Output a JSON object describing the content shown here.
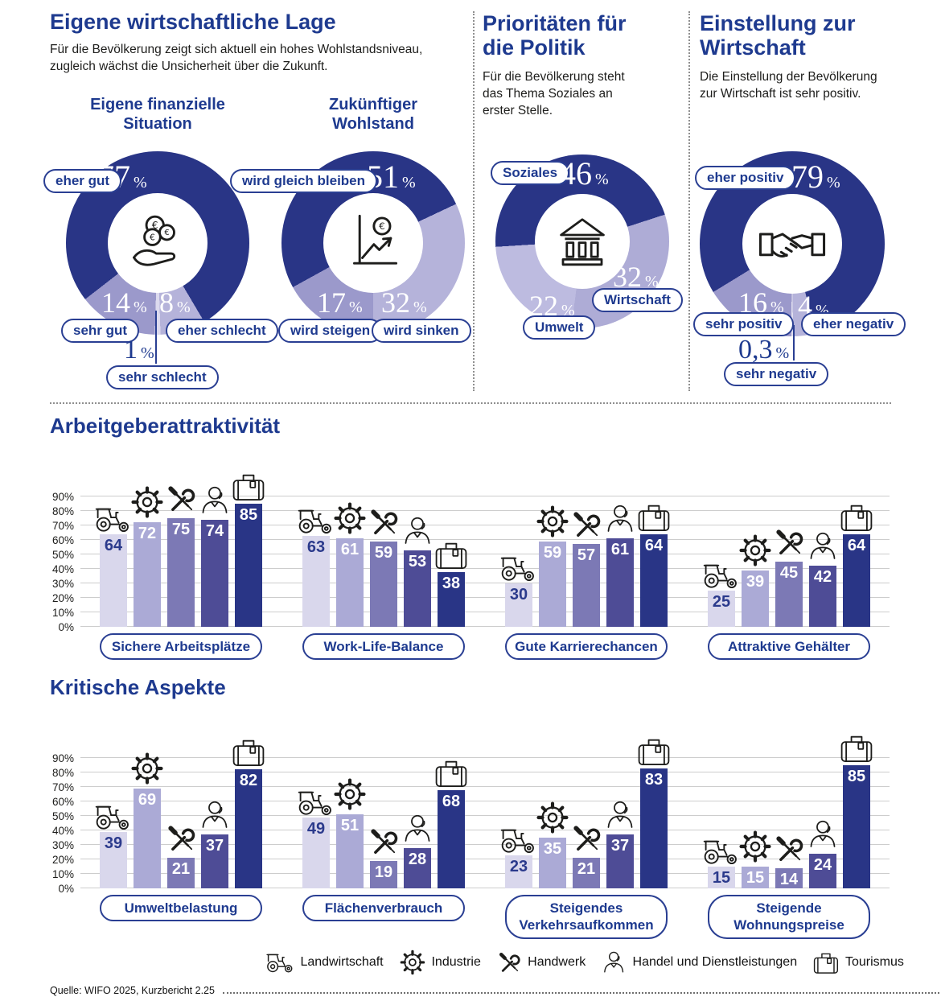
{
  "percent": "%",
  "source_note": "Quelle: WIFO 2025, Kurzbericht 2.25",
  "colors": {
    "navy": "#1e3a8f",
    "slice_dark": "#293586",
    "slice_medium": "#9b99cb",
    "slice_light": "#b5b3da",
    "slice_xlight": "#dcdaee",
    "bar_palette": [
      "#d9d7ec",
      "#abaad6",
      "#7c79b5",
      "#4e4c96",
      "#293586"
    ]
  },
  "sections": [
    {
      "title": "Eigene wirtschaftliche Lage",
      "subtitle": "Für die Bevölkerung zeigt sich aktuell ein hohes Wohlstandsniveau, zugleich wächst die Unsicherheit über die Zukunft."
    },
    {
      "title": "Prioritäten für die Politik",
      "subtitle": "Für die Bevölkerung steht das Thema Soziales an erster Stelle."
    },
    {
      "title": "Einstellung zur Wirtschaft",
      "subtitle": "Die Einstellung der Bevölkerung zur Wirtschaft ist sehr positiv."
    }
  ],
  "chart_data": [
    {
      "type": "pie",
      "title": "Eigene finanzielle Situation",
      "center_icon": "coins-in-hand-icon",
      "segments": [
        {
          "label": "eher gut",
          "value": 77,
          "display": "77"
        },
        {
          "label": "sehr gut",
          "value": 14,
          "display": "14"
        },
        {
          "label": "eher schlecht",
          "value": 8,
          "display": "8"
        },
        {
          "label": "sehr schlecht",
          "value": 1,
          "display": "1"
        }
      ]
    },
    {
      "type": "pie",
      "title": "Zukünftiger Wohlstand",
      "center_icon": "rising-euro-chart-icon",
      "segments": [
        {
          "label": "wird gleich bleiben",
          "value": 51,
          "display": "51"
        },
        {
          "label": "wird steigen",
          "value": 17,
          "display": "17"
        },
        {
          "label": "wird sinken",
          "value": 32,
          "display": "32"
        }
      ]
    },
    {
      "type": "pie",
      "title": "Prioritäten für die Politik",
      "center_icon": "government-building-icon",
      "segments": [
        {
          "label": "Soziales",
          "value": 46,
          "display": "46"
        },
        {
          "label": "Umwelt",
          "value": 22,
          "display": "22"
        },
        {
          "label": "Wirtschaft",
          "value": 32,
          "display": "32"
        }
      ]
    },
    {
      "type": "pie",
      "title": "Einstellung zur Wirtschaft",
      "center_icon": "handshake-icon",
      "segments": [
        {
          "label": "eher positiv",
          "value": 79,
          "display": "79"
        },
        {
          "label": "sehr positiv",
          "value": 16,
          "display": "16"
        },
        {
          "label": "eher negativ",
          "value": 4,
          "display": "4"
        },
        {
          "label": "sehr negativ",
          "value": 0.3,
          "display": "0,3"
        }
      ]
    },
    {
      "type": "bar",
      "title": "Arbeitgeberattraktivität",
      "categories": [
        "Sichere Arbeitsplätze",
        "Work-Life-Balance",
        "Gute Karrierechancen",
        "Attraktive Gehälter"
      ],
      "series": [
        {
          "name": "Landwirtschaft",
          "values": [
            64,
            63,
            30,
            25
          ]
        },
        {
          "name": "Industrie",
          "values": [
            72,
            61,
            59,
            39
          ]
        },
        {
          "name": "Handwerk",
          "values": [
            75,
            59,
            57,
            45
          ]
        },
        {
          "name": "Handel und Dienstleistungen",
          "values": [
            74,
            53,
            61,
            42
          ]
        },
        {
          "name": "Tourismus",
          "values": [
            85,
            38,
            64,
            64
          ]
        }
      ],
      "ylabel": "",
      "ylim": [
        0,
        90
      ],
      "ytick_step": 10,
      "grid": true
    },
    {
      "type": "bar",
      "title": "Kritische Aspekte",
      "categories": [
        "Umweltbelastung",
        "Flächenverbrauch",
        "Steigendes Verkehrsaufkommen",
        "Steigende Wohnungspreise"
      ],
      "series": [
        {
          "name": "Landwirtschaft",
          "values": [
            39,
            49,
            23,
            15
          ]
        },
        {
          "name": "Industrie",
          "values": [
            69,
            51,
            35,
            15
          ]
        },
        {
          "name": "Handwerk",
          "values": [
            21,
            19,
            21,
            14
          ]
        },
        {
          "name": "Handel und Dienstleistungen",
          "values": [
            37,
            28,
            37,
            24
          ]
        },
        {
          "name": "Tourismus",
          "values": [
            82,
            68,
            83,
            85
          ]
        }
      ],
      "ylabel": "",
      "ylim": [
        0,
        90
      ],
      "ytick_step": 10,
      "grid": true
    }
  ],
  "legend": {
    "items": [
      {
        "icon": "tractor-icon",
        "label": "Landwirtschaft"
      },
      {
        "icon": "gear-icon",
        "label": "Industrie"
      },
      {
        "icon": "tools-icon",
        "label": "Handwerk"
      },
      {
        "icon": "service-person-icon",
        "label": "Handel und Dienstleistungen"
      },
      {
        "icon": "suitcase-icon",
        "label": "Tourismus"
      }
    ]
  }
}
